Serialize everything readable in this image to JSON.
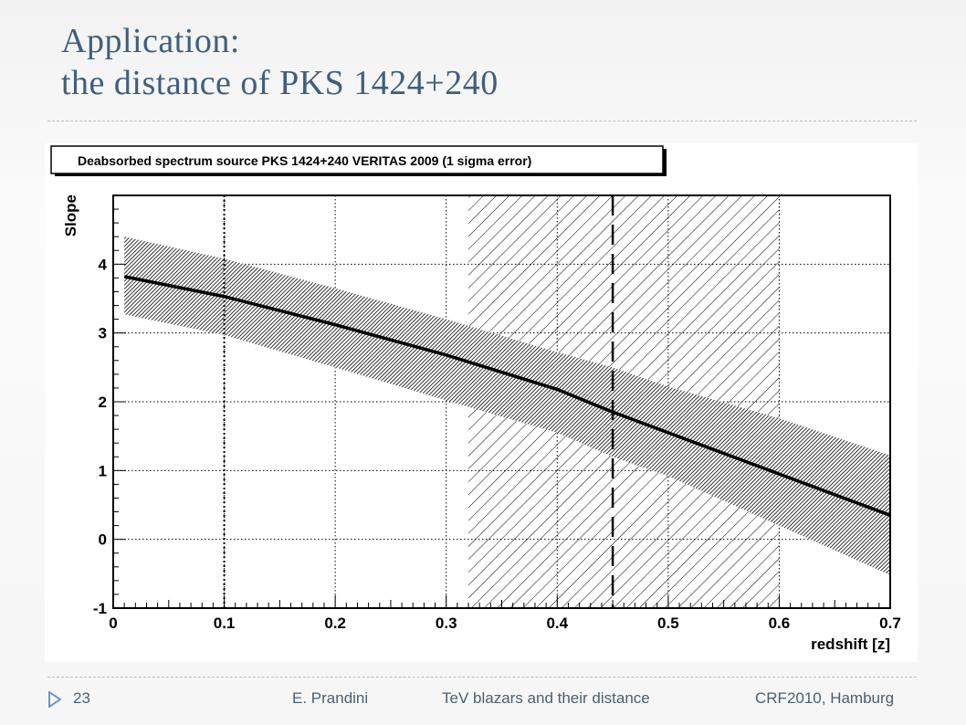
{
  "slide": {
    "title_line1": "Application:",
    "title_line2": "the distance of PKS 1424+240"
  },
  "footer": {
    "page_number": "23",
    "author": "E. Prandini",
    "talk_title": "TeV blazars and their distance",
    "event": "CRF2010, Hamburg",
    "bullet_icon": "triangle-right-icon"
  },
  "colors": {
    "title": "#3f5f7d",
    "footer_text": "#4a5f73",
    "bullet": "#6f97c2",
    "ink": "#000000"
  },
  "chart_data": {
    "type": "line",
    "title": "Deabsorbed spectrum source  PKS 1424+240 VERITAS 2009  (1 sigma error)",
    "xlabel": "redshift [z]",
    "ylabel": "Slope",
    "xlim": [
      0,
      0.7
    ],
    "ylim": [
      -1,
      5
    ],
    "xticks": [
      0,
      0.1,
      0.2,
      0.3,
      0.4,
      0.5,
      0.6,
      0.7
    ],
    "xtick_labels": [
      "0",
      "0.1",
      "0.2",
      "0.3",
      "0.4",
      "0.5",
      "0.6",
      "0.7"
    ],
    "yticks": [
      -1,
      0,
      1,
      2,
      3,
      4
    ],
    "ytick_labels": [
      "-1",
      "0",
      "1",
      "2",
      "3",
      "4"
    ],
    "grid": true,
    "series": [
      {
        "x": [
          0.01,
          0.1,
          0.2,
          0.3,
          0.4,
          0.45,
          0.5,
          0.6,
          0.7
        ],
        "values": [
          3.82,
          3.53,
          3.12,
          2.68,
          2.18,
          1.85,
          1.55,
          0.95,
          0.35
        ],
        "upper": [
          4.4,
          4.08,
          3.65,
          3.2,
          2.72,
          2.5,
          2.22,
          1.76,
          1.22
        ],
        "lower": [
          3.27,
          2.97,
          2.5,
          2.02,
          1.55,
          1.2,
          0.92,
          0.2,
          -0.52
        ]
      }
    ],
    "excluded_region": {
      "x": [
        0.32,
        0.6
      ]
    },
    "vertical_markers": [
      {
        "x": 0.1,
        "style": "dotted"
      },
      {
        "x": 0.45,
        "style": "dashed"
      }
    ]
  }
}
